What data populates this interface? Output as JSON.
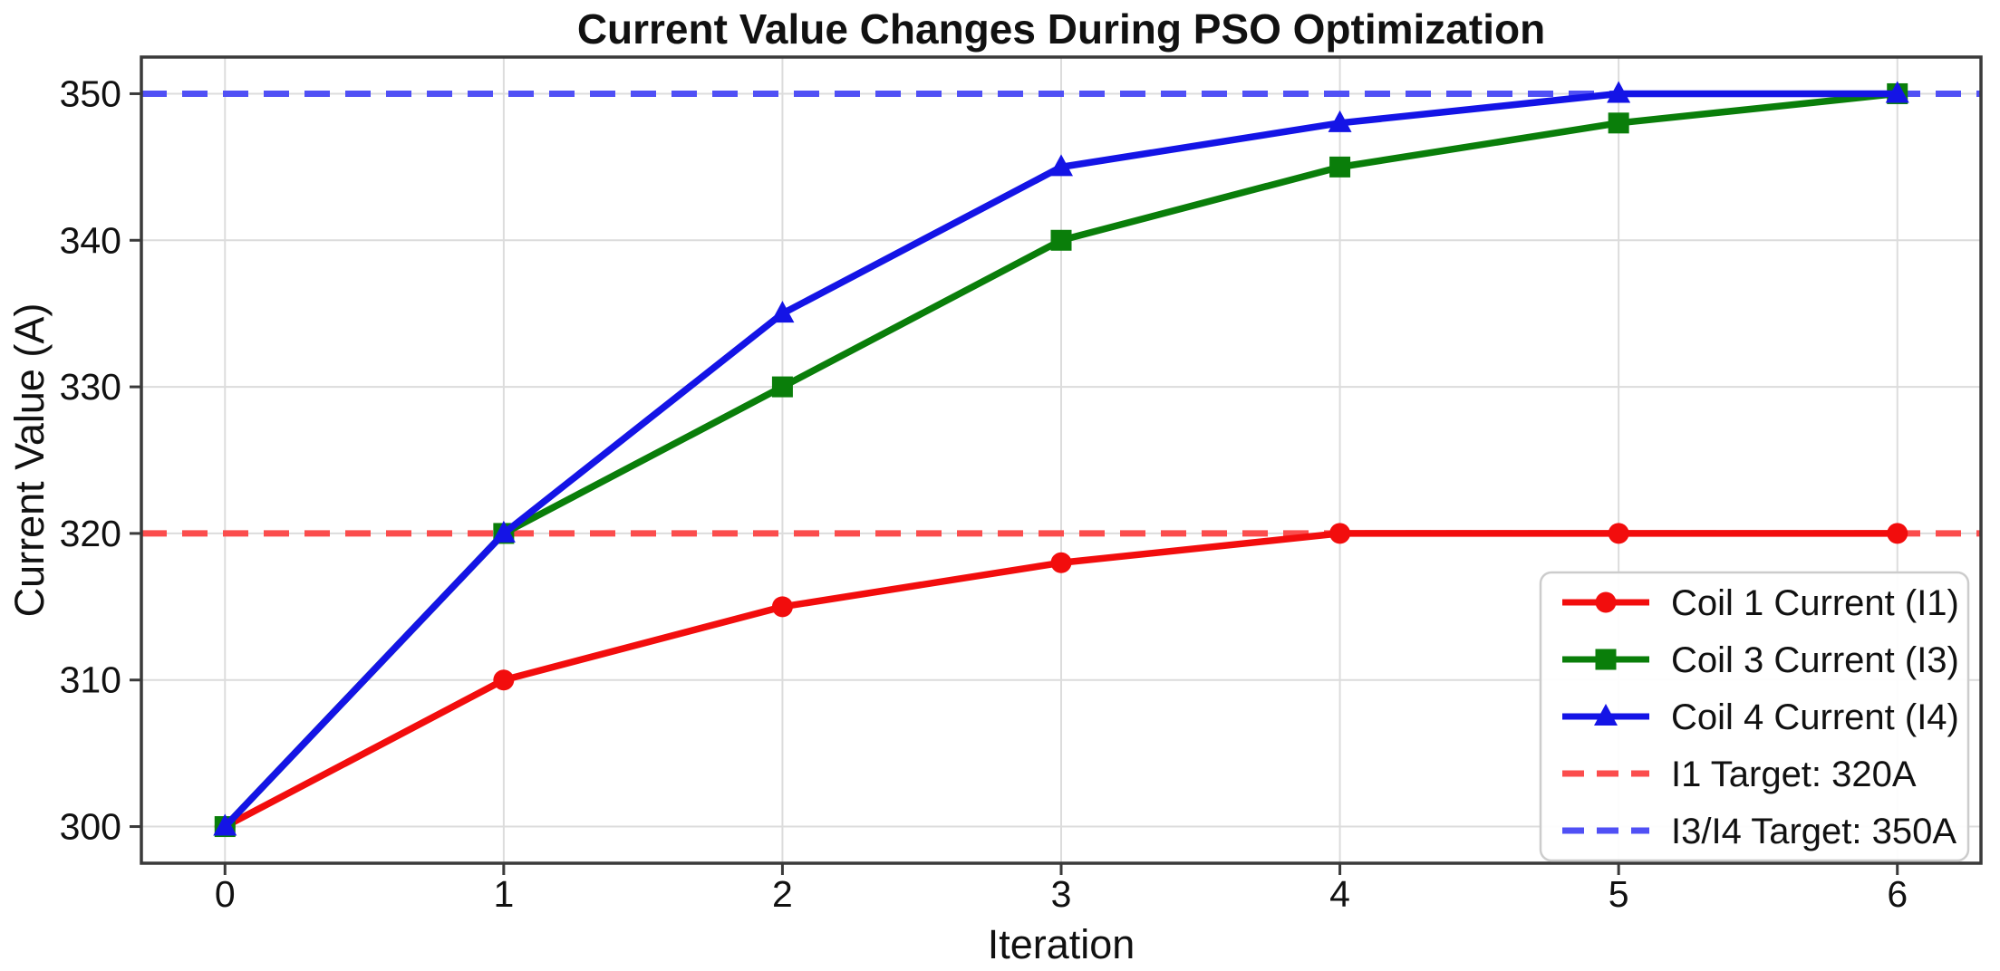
{
  "chart_data": {
    "type": "line",
    "title": "Current Value Changes During PSO Optimization",
    "xlabel": "Iteration",
    "ylabel": "Current Value (A)",
    "x": [
      0,
      1,
      2,
      3,
      4,
      5,
      6
    ],
    "xticks": [
      0,
      1,
      2,
      3,
      4,
      5,
      6
    ],
    "yticks": [
      300,
      310,
      320,
      330,
      340,
      350
    ],
    "xlim": [
      -0.3,
      6.3
    ],
    "ylim": [
      297.5,
      352.5
    ],
    "grid": true,
    "legend_position": "lower right",
    "series": [
      {
        "name": "Coil 1 Current (I1)",
        "values": [
          300,
          310,
          315,
          318,
          320,
          320,
          320
        ],
        "color": "#f20d0d",
        "marker": "circle",
        "style": "solid"
      },
      {
        "name": "Coil 3 Current (I3)",
        "values": [
          300,
          320,
          330,
          340,
          345,
          348,
          350
        ],
        "color": "#0a7e0a",
        "marker": "square",
        "style": "solid"
      },
      {
        "name": "Coil 4 Current (I4)",
        "values": [
          300,
          320,
          335,
          345,
          348,
          350,
          350
        ],
        "color": "#1414e6",
        "marker": "triangle",
        "style": "solid"
      }
    ],
    "target_lines": [
      {
        "name": "I1 Target: 320A",
        "value": 320,
        "color": "#fb4d4d",
        "style": "dashed"
      },
      {
        "name": "I3/I4 Target: 350A",
        "value": 350,
        "color": "#5050f5",
        "style": "dashed"
      }
    ]
  }
}
